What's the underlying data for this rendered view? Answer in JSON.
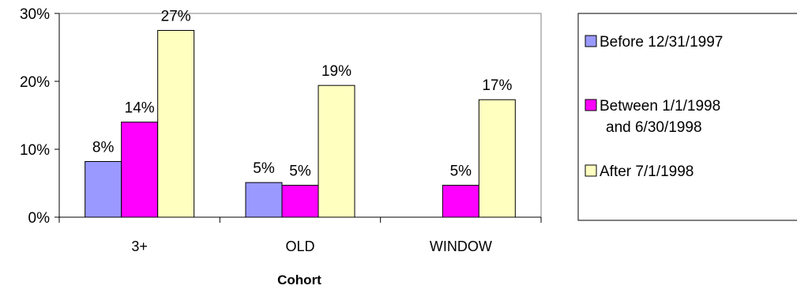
{
  "chart_data": {
    "type": "bar",
    "title": "",
    "xlabel": "Cohort",
    "ylabel": "",
    "categories": [
      "3+",
      "OLD",
      "WINDOW"
    ],
    "ylim": [
      0,
      30
    ],
    "yticks": [
      "0%",
      "10%",
      "20%",
      "30%"
    ],
    "grid": false,
    "legend_position": "right",
    "series": [
      {
        "name": "Before 12/31/1997",
        "color": "#9999ff",
        "values": [
          8.2,
          5.1,
          null
        ],
        "labels": [
          "8%",
          "5%",
          ""
        ]
      },
      {
        "name": "Between 1/1/1998 and 6/30/1998",
        "legend_lines": [
          "Between 1/1/1998",
          "and 6/30/1998"
        ],
        "color": "#ff00ff",
        "values": [
          14.0,
          4.7,
          4.7
        ],
        "labels": [
          "14%",
          "5%",
          "5%"
        ]
      },
      {
        "name": "After 7/1/1998",
        "color": "#ffffc0",
        "values": [
          27.5,
          19.4,
          17.3
        ],
        "labels": [
          "27%",
          "19%",
          "17%"
        ]
      }
    ]
  }
}
